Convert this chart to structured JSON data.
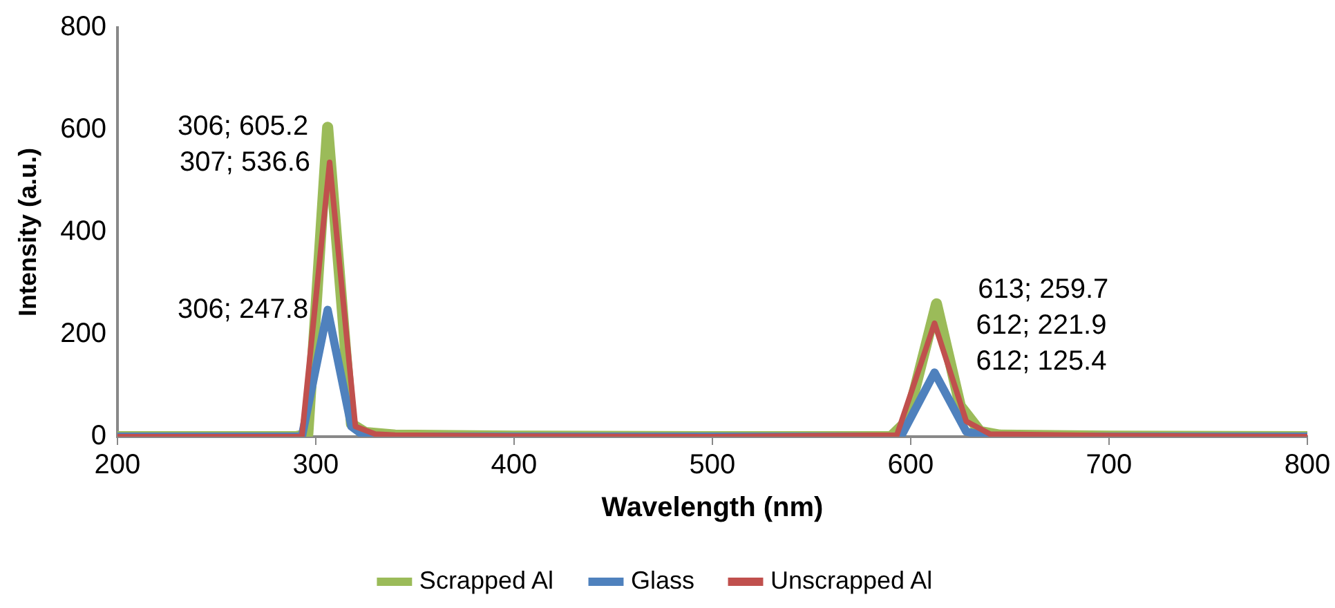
{
  "chart_data": {
    "type": "line",
    "xlabel": "Wavelength (nm)",
    "ylabel": "Intensity (a.u.)",
    "xlim": [
      200,
      800
    ],
    "xticks": [
      200,
      300,
      400,
      500,
      600,
      700,
      800
    ],
    "ylim": [
      0,
      800
    ],
    "yticks": [
      0,
      200,
      400,
      600,
      800
    ],
    "grid": false,
    "legend": "bottom",
    "marker": "none",
    "line_style": "solid",
    "series": [
      {
        "name": "Scrapped Al",
        "color": "#9bbb59",
        "x": [
          200,
          250,
          290,
          296,
          306,
          318,
          325,
          340,
          400,
          500,
          590,
          598,
          613,
          625,
          635,
          645,
          700,
          800
        ],
        "values": [
          0,
          0,
          0,
          5,
          605.2,
          25,
          8,
          3,
          1,
          0,
          0,
          30,
          259.7,
          60,
          10,
          3,
          1,
          0
        ]
      },
      {
        "name": "Glass",
        "color": "#4f81bd",
        "x": [
          200,
          250,
          293,
          306,
          318,
          325,
          340,
          400,
          500,
          595,
          612,
          628,
          640,
          700,
          800
        ],
        "values": [
          0,
          0,
          0,
          247.8,
          20,
          0,
          0,
          0,
          0,
          0,
          125.4,
          10,
          0,
          0,
          0
        ]
      },
      {
        "name": "Unscrapped Al",
        "color": "#c0504d",
        "x": [
          200,
          250,
          293,
          307,
          320,
          330,
          340,
          400,
          500,
          593,
          612,
          628,
          640,
          700,
          800
        ],
        "values": [
          0,
          0,
          0,
          536.6,
          20,
          5,
          3,
          1,
          0,
          3,
          221.9,
          30,
          5,
          2,
          0
        ]
      }
    ],
    "annotations": [
      {
        "text": "306; 605.2",
        "x": 306,
        "y": 605.2
      },
      {
        "text": "307; 536.6",
        "x": 307,
        "y": 536.6
      },
      {
        "text": "306; 247.8",
        "x": 306,
        "y": 247.8
      },
      {
        "text": "613; 259.7",
        "x": 613,
        "y": 259.7
      },
      {
        "text": "612; 221.9",
        "x": 612,
        "y": 221.9
      },
      {
        "text": "612; 125.4",
        "x": 612,
        "y": 125.4
      }
    ]
  }
}
